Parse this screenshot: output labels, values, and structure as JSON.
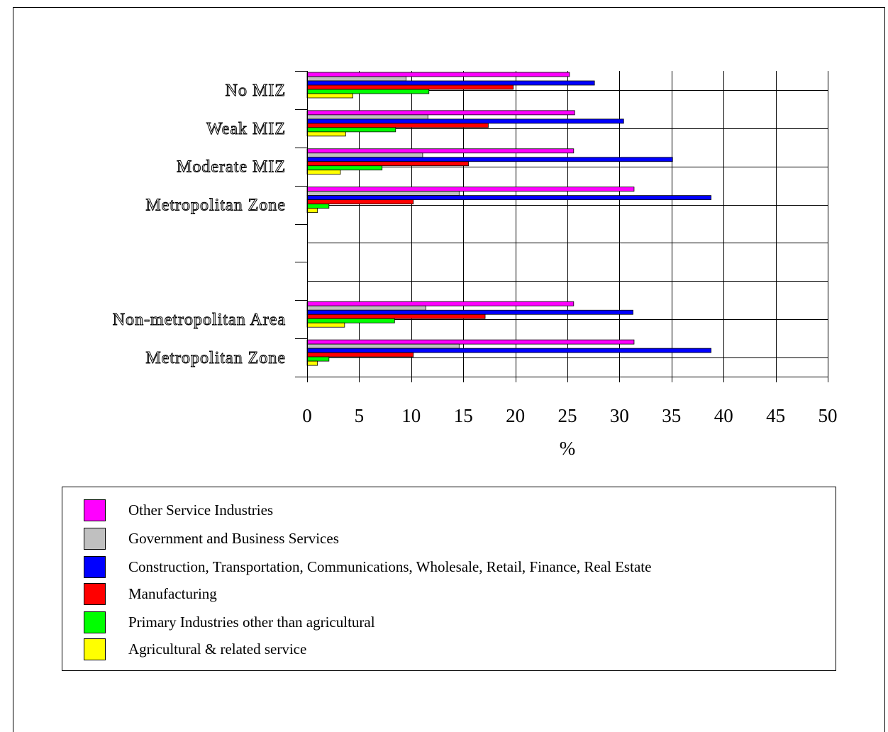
{
  "chart_data": {
    "type": "bar",
    "orientation": "horizontal",
    "title": "",
    "xlabel": "%",
    "ylabel": "",
    "xlim": [
      0,
      50
    ],
    "x_ticks": [
      0,
      5,
      10,
      15,
      20,
      25,
      30,
      35,
      40,
      45,
      50
    ],
    "grid": true,
    "legend_position": "bottom",
    "categories": [
      "No MIZ",
      "Weak MIZ",
      "Moderate MIZ",
      "Metropolitan Zone",
      "",
      "",
      "Non-metropolitan Area",
      "Metropolitan Zone"
    ],
    "series": [
      {
        "name": "Other Service Industries",
        "color": "#ff00ff",
        "values": [
          25.2,
          25.7,
          25.6,
          31.4,
          null,
          null,
          25.6,
          31.4
        ]
      },
      {
        "name": "Government and  Business Services",
        "color": "#c0c0c0",
        "values": [
          9.5,
          11.6,
          11.1,
          14.6,
          null,
          null,
          11.4,
          14.6
        ]
      },
      {
        "name": "Construction, Transportation, Communications, Wholesale, Retail, Finance, Real Estate",
        "color": "#0000ff",
        "values": [
          27.6,
          30.4,
          35.1,
          38.8,
          null,
          null,
          31.3,
          38.8
        ]
      },
      {
        "name": "Manufacturing",
        "color": "#ff0000",
        "values": [
          19.8,
          17.4,
          15.5,
          10.2,
          null,
          null,
          17.1,
          10.2
        ]
      },
      {
        "name": "Primary Industries other than agricultural",
        "color": "#00ff00",
        "values": [
          11.7,
          8.5,
          7.2,
          2.1,
          null,
          null,
          8.4,
          2.1
        ]
      },
      {
        "name": "Agricultural & related service",
        "color": "#ffff00",
        "values": [
          4.4,
          3.7,
          3.2,
          1.0,
          null,
          null,
          3.6,
          1.0
        ]
      }
    ]
  },
  "legend": {
    "items": [
      {
        "label": "Other Service Industries",
        "color": "#ff00ff"
      },
      {
        "label": "Government and  Business Services",
        "color": "#c0c0c0"
      },
      {
        "label": "Construction, Transportation, Communications, Wholesale, Retail, Finance, Real Estate",
        "color": "#0000ff"
      },
      {
        "label": "Manufacturing",
        "color": "#ff0000"
      },
      {
        "label": "Primary Industries other than agricultural",
        "color": "#00ff00"
      },
      {
        "label": "Agricultural & related service",
        "color": "#ffff00"
      }
    ]
  }
}
